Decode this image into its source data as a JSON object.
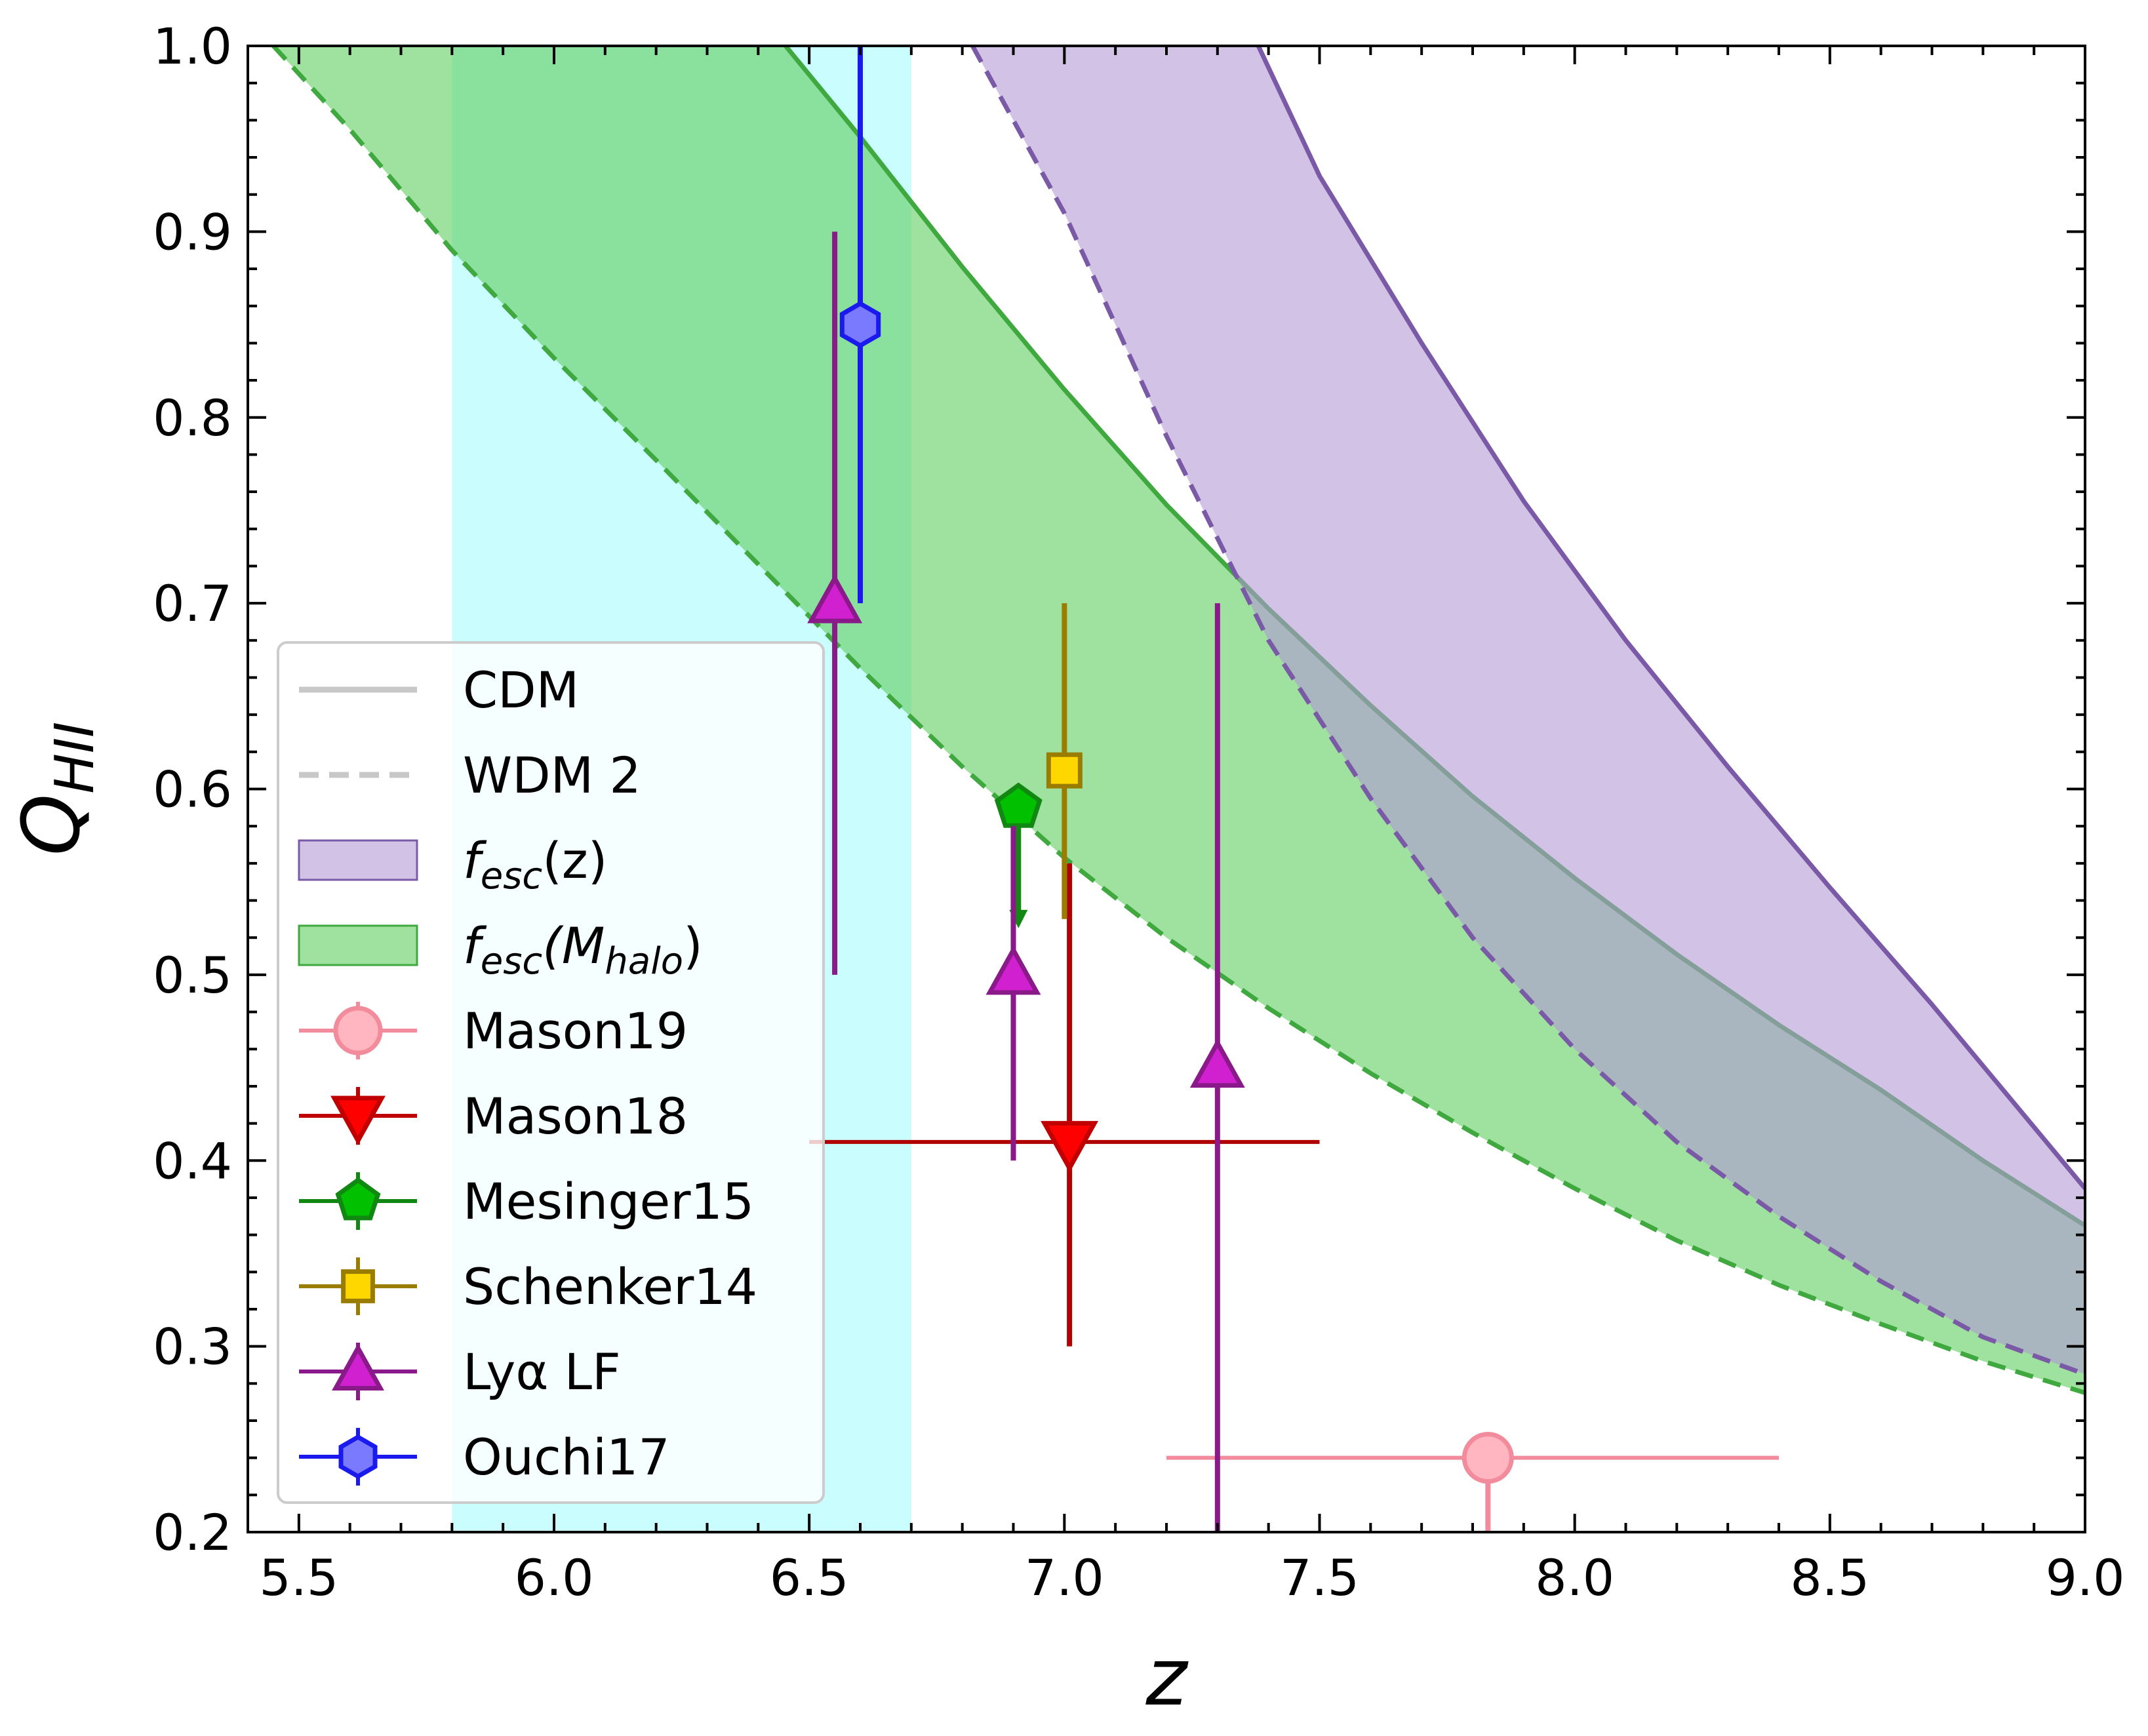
{
  "chart_data": {
    "type": "line",
    "xlabel": "z",
    "ylabel_main": "Q",
    "ylabel_sub": "HII",
    "xlim": [
      5.4,
      9.0
    ],
    "ylim": [
      0.2,
      1.0
    ],
    "xticks": [
      "5.5",
      "6.0",
      "6.5",
      "7.0",
      "7.5",
      "8.0",
      "8.5",
      "9.0"
    ],
    "xtick_values": [
      5.5,
      6.0,
      6.5,
      7.0,
      7.5,
      8.0,
      8.5,
      9.0
    ],
    "yticks": [
      "0.2",
      "0.3",
      "0.4",
      "0.5",
      "0.6",
      "0.7",
      "0.8",
      "0.9",
      "1.0"
    ],
    "ytick_values": [
      0.2,
      0.3,
      0.4,
      0.5,
      0.6,
      0.7,
      0.8,
      0.9,
      1.0
    ],
    "vertical_band": {
      "x0": 5.8,
      "x1": 6.7,
      "color": "#b8fcfc"
    },
    "bands": [
      {
        "name": "fesc(Mhalo)",
        "color": "#5fcf5f",
        "edge_color": "#3fa83f",
        "upper_curve": {
          "x": [
            5.5,
            5.8,
            6.0,
            6.2,
            6.4,
            6.6,
            6.8,
            7.0,
            7.2,
            7.4,
            7.6,
            7.8,
            8.0,
            8.2,
            8.4,
            8.6,
            8.8,
            9.0
          ],
          "y": [
            1.4,
            1.26,
            1.17,
            1.09,
            1.018,
            0.951,
            0.881,
            0.815,
            0.753,
            0.697,
            0.645,
            0.596,
            0.552,
            0.511,
            0.473,
            0.438,
            0.4,
            0.365
          ]
        },
        "lower_curve": {
          "x": [
            5.45,
            5.6,
            5.8,
            6.0,
            6.2,
            6.4,
            6.6,
            6.8,
            7.0,
            7.2,
            7.4,
            7.6,
            7.8,
            8.0,
            8.2,
            8.4,
            8.6,
            8.8,
            9.0
          ],
          "y": [
            1.0,
            0.955,
            0.89,
            0.832,
            0.777,
            0.721,
            0.665,
            0.612,
            0.563,
            0.52,
            0.482,
            0.447,
            0.415,
            0.385,
            0.357,
            0.333,
            0.312,
            0.292,
            0.275
          ]
        }
      },
      {
        "name": "fesc(z)",
        "color": "#b39ad6",
        "edge_color": "#7a5aa6",
        "upper_curve": {
          "x": [
            7.0,
            7.2,
            7.38,
            7.5,
            7.7,
            7.9,
            8.1,
            8.3,
            8.5,
            8.7,
            8.9,
            9.0
          ],
          "y": [
            1.17,
            1.07,
            1.0,
            0.93,
            0.84,
            0.755,
            0.68,
            0.612,
            0.547,
            0.484,
            0.418,
            0.385
          ]
        },
        "lower_curve": {
          "x": [
            6.82,
            7.0,
            7.2,
            7.4,
            7.6,
            7.8,
            8.0,
            8.2,
            8.4,
            8.6,
            8.8,
            9.0
          ],
          "y": [
            1.0,
            0.91,
            0.79,
            0.68,
            0.595,
            0.52,
            0.46,
            0.41,
            0.37,
            0.335,
            0.305,
            0.285
          ]
        }
      }
    ],
    "observations": [
      {
        "name": "Mason19",
        "marker": "circle",
        "color": "#ffb6c1",
        "edge": "#f28c9c",
        "bar": "#f28c9c",
        "x": 7.83,
        "y": 0.24,
        "xerr": [
          7.2,
          8.4
        ],
        "yerr": [
          0.2,
          0.24
        ],
        "arrow": "down"
      },
      {
        "name": "Mason18",
        "marker": "triangle-down",
        "color": "#ff0000",
        "edge": "#c00000",
        "bar": "#b00000",
        "x": 7.01,
        "y": 0.41,
        "xerr": [
          6.5,
          7.5
        ],
        "yerr": [
          0.3,
          0.56
        ]
      },
      {
        "name": "Mesinger15",
        "marker": "pentagon",
        "color": "#00c000",
        "edge": "#118811",
        "bar": "#118811",
        "x": 6.91,
        "y": 0.59,
        "yerr": [
          0.53,
          0.59
        ],
        "arrow": "down"
      },
      {
        "name": "Schenker14",
        "marker": "square",
        "color": "#ffd700",
        "edge": "#9a7d00",
        "bar": "#9a7d00",
        "x": 7.0,
        "y": 0.61,
        "yerr": [
          0.53,
          0.7
        ]
      },
      {
        "name": "Lyα LF",
        "marker": "triangle-up",
        "color": "#d020d0",
        "edge": "#8a1a8a",
        "bar": "#8a1a8a",
        "points": [
          {
            "x": 6.55,
            "y": 0.7,
            "yerr": [
              0.5,
              0.9
            ]
          },
          {
            "x": 6.9,
            "y": 0.5,
            "yerr": [
              0.4,
              0.58
            ]
          },
          {
            "x": 7.3,
            "y": 0.45,
            "yerr": [
              0.2,
              0.7
            ]
          }
        ]
      },
      {
        "name": "Ouchi17",
        "marker": "hexagon",
        "color": "#7a7aff",
        "edge": "#1a1aee",
        "bar": "#1a1aee",
        "x": 6.6,
        "y": 0.85,
        "yerr": [
          0.7,
          1.0
        ]
      }
    ],
    "legend": {
      "placement": "lower-left",
      "entries": [
        {
          "label": "CDM",
          "kind": "line-solid",
          "color": "#c8c8c8"
        },
        {
          "label": "WDM 2",
          "kind": "line-dashed",
          "color": "#c8c8c8"
        },
        {
          "label": "fesc(z)",
          "main": "f",
          "sub": "esc",
          "tail": "(z)",
          "kind": "patch",
          "color": "#b39ad6",
          "edge": "#7a5aa6"
        },
        {
          "label": "fesc(Mhalo)",
          "main": "f",
          "sub": "esc",
          "tail_open": "(M",
          "tail_sub": "halo",
          "tail_close": ")",
          "kind": "patch",
          "color": "#5fcf5f",
          "edge": "#3fa83f"
        },
        {
          "label": "Mason19",
          "kind": "marker",
          "marker": "circle",
          "color": "#ffb6c1",
          "edge": "#f28c9c"
        },
        {
          "label": "Mason18",
          "kind": "marker",
          "marker": "triangle-down",
          "color": "#ff0000",
          "edge": "#c00000"
        },
        {
          "label": "Mesinger15",
          "kind": "marker",
          "marker": "pentagon",
          "color": "#00c000",
          "edge": "#118811"
        },
        {
          "label": "Schenker14",
          "kind": "marker",
          "marker": "square",
          "color": "#ffd700",
          "edge": "#9a7d00"
        },
        {
          "label": "Lyα LF",
          "kind": "marker",
          "marker": "triangle-up",
          "color": "#d020d0",
          "edge": "#8a1a8a"
        },
        {
          "label": "Ouchi17",
          "kind": "marker",
          "marker": "hexagon",
          "color": "#7a7aff",
          "edge": "#1a1aee"
        }
      ]
    }
  }
}
